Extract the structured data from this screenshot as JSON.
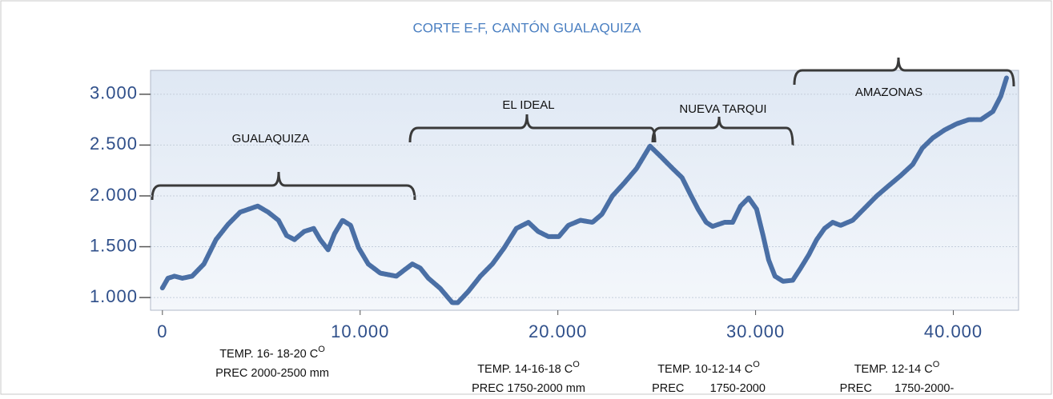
{
  "chart_data": {
    "type": "line",
    "title": "CORTE E-F, CANTÓN GUALAQUIZA",
    "x": [
      0,
      280,
      610,
      1010,
      1500,
      2100,
      2710,
      3320,
      3930,
      4820,
      5350,
      5870,
      6280,
      6680,
      7170,
      7650,
      7980,
      8380,
      8710,
      9110,
      9520,
      9920,
      10410,
      11020,
      11830,
      12230,
      12640,
      13040,
      13450,
      14050,
      14660,
      14940,
      15470,
      16080,
      16690,
      17290,
      17900,
      18510,
      19000,
      19520,
      20050,
      20530,
      21140,
      21750,
      22230,
      22760,
      23370,
      23980,
      24660,
      25190,
      25800,
      26280,
      26690,
      27090,
      27500,
      27820,
      28430,
      28840,
      29240,
      29650,
      30050,
      30380,
      30660,
      30980,
      31390,
      31880,
      32280,
      32690,
      33090,
      33490,
      33900,
      34300,
      34910,
      35520,
      36130,
      36730,
      37340,
      37950,
      38430,
      38960,
      39570,
      40180,
      40780,
      41390,
      42000,
      42400,
      42690
    ],
    "series": [
      {
        "color": "#4a6fa5",
        "values": [
          1094,
          1190,
          1210,
          1190,
          1210,
          1330,
          1570,
          1720,
          1840,
          1900,
          1840,
          1760,
          1610,
          1570,
          1650,
          1680,
          1570,
          1470,
          1630,
          1760,
          1710,
          1490,
          1330,
          1240,
          1210,
          1270,
          1330,
          1290,
          1190,
          1090,
          950,
          950,
          1060,
          1210,
          1330,
          1490,
          1680,
          1740,
          1650,
          1600,
          1600,
          1710,
          1760,
          1740,
          1820,
          2000,
          2130,
          2270,
          2490,
          2390,
          2270,
          2180,
          2020,
          1870,
          1740,
          1700,
          1740,
          1740,
          1900,
          1980,
          1870,
          1610,
          1370,
          1210,
          1160,
          1170,
          1290,
          1420,
          1570,
          1680,
          1740,
          1710,
          1760,
          1880,
          2000,
          2100,
          2200,
          2310,
          2470,
          2570,
          2650,
          2710,
          2750,
          2750,
          2830,
          2980,
          3160
        ]
      }
    ],
    "xlim": [
      -600,
      43300
    ],
    "ylim": [
      875,
      3235
    ],
    "xticks": [
      0,
      {
        "value": 10000,
        "label": "10.000"
      },
      {
        "value": 20000,
        "label": "20.000"
      },
      {
        "value": 30000,
        "label": "30.000"
      },
      {
        "value": 40000,
        "label": "40.000"
      }
    ],
    "yticks": [
      {
        "value": 1000,
        "label": "1.000"
      },
      {
        "value": 1500,
        "label": "1.500"
      },
      {
        "value": 2000,
        "label": "2.000"
      },
      {
        "value": 2500,
        "label": "2.500"
      },
      {
        "value": 3000,
        "label": "3.000"
      }
    ],
    "regions": [
      "GUALAQUIZA",
      "EL IDEAL",
      "NUEVA TARQUI",
      "AMAZONAS"
    ],
    "climate": [
      {
        "temp": "TEMP. 16- 18-20 C",
        "sup": "O",
        "prec": "PREC 2000-2500 mm"
      },
      {
        "temp": "TEMP. 14-16-18 C",
        "sup": "O",
        "prec": "PREC 1750-2000 mm"
      },
      {
        "temp": "TEMP. 10-12-14 C",
        "sup": "O",
        "prec": "PREC        1750-2000"
      },
      {
        "temp": "TEMP. 12-14 C",
        "sup": "O",
        "prec": "PREC       1750-2000-"
      }
    ]
  }
}
